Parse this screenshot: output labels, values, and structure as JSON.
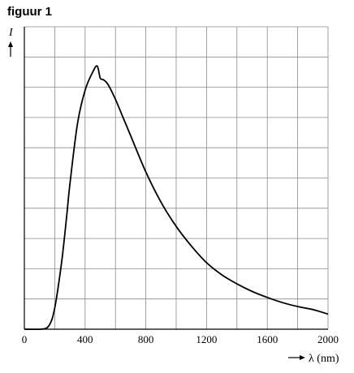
{
  "figure_label": "figuur 1",
  "chart_data": {
    "type": "line",
    "title": "figuur 1",
    "ylabel": "I",
    "xlabel": "λ (nm)",
    "xlim": [
      0,
      2000
    ],
    "ylim": [
      0,
      10
    ],
    "x_ticks": [
      0,
      400,
      800,
      1200,
      1600,
      2000
    ],
    "x_tick_labels": [
      "0",
      "400",
      "800",
      "1200",
      "1600",
      "2000"
    ],
    "y_tick_labels": [],
    "grid": true,
    "grid_x_step": 200,
    "grid_y_step": 1,
    "series": [
      {
        "color": "#000000",
        "x": [
          0,
          100,
          150,
          180,
          200,
          220,
          250,
          280,
          300,
          350,
          400,
          450,
          480,
          500,
          520,
          550,
          600,
          650,
          700,
          800,
          900,
          1000,
          1100,
          1200,
          1300,
          1400,
          1500,
          1600,
          1700,
          1800,
          1900,
          2000
        ],
        "y": [
          0,
          0,
          0.05,
          0.3,
          0.7,
          1.3,
          2.4,
          3.8,
          4.8,
          6.8,
          7.9,
          8.5,
          8.7,
          8.3,
          8.25,
          8.1,
          7.6,
          7.0,
          6.4,
          5.2,
          4.2,
          3.4,
          2.75,
          2.2,
          1.8,
          1.5,
          1.25,
          1.05,
          0.88,
          0.75,
          0.65,
          0.5
        ]
      }
    ]
  }
}
